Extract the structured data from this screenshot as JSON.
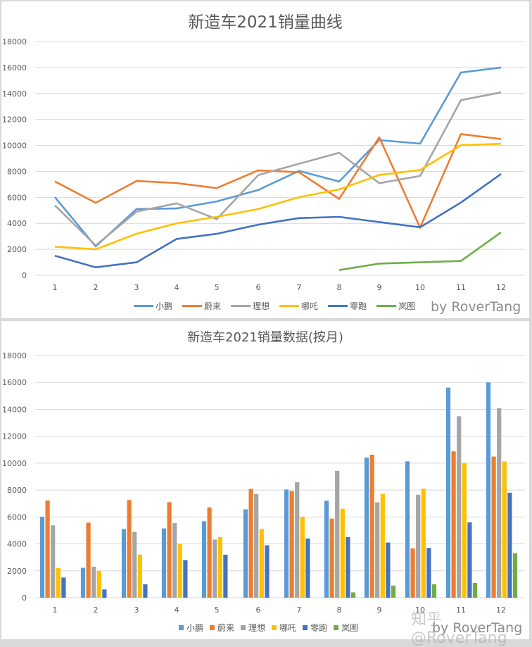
{
  "chart_data": [
    {
      "type": "line",
      "title": "新造车2021销量曲线",
      "xlabel": "",
      "ylabel": "",
      "categories": [
        "1",
        "2",
        "3",
        "4",
        "5",
        "6",
        "7",
        "8",
        "9",
        "10",
        "11",
        "12"
      ],
      "yticks": [
        "0",
        "2000",
        "4000",
        "6000",
        "8000",
        "10000",
        "12000",
        "14000",
        "16000",
        "18000"
      ],
      "ylim": [
        0,
        18000
      ],
      "grid": true,
      "legend_position": "bottom",
      "series": [
        {
          "name": "小鹏",
          "color": "#5b9bd5",
          "values": [
            6015,
            2223,
            5100,
            5147,
            5686,
            6565,
            8040,
            7214,
            10412,
            10138,
            15613,
            16000
          ]
        },
        {
          "name": "蔚来",
          "color": "#ed7d31",
          "values": [
            7225,
            5578,
            7257,
            7102,
            6711,
            8083,
            7931,
            5880,
            10628,
            3667,
            10878,
            10489
          ]
        },
        {
          "name": "理想",
          "color": "#a5a5a5",
          "values": [
            5379,
            2300,
            4900,
            5539,
            4323,
            7713,
            8589,
            9433,
            7094,
            7649,
            13485,
            14087
          ]
        },
        {
          "name": "哪吒",
          "color": "#ffc000",
          "values": [
            2200,
            2000,
            3200,
            4000,
            4500,
            5100,
            6011,
            6613,
            7722,
            8107,
            10013,
            10127
          ]
        },
        {
          "name": "零跑",
          "color": "#4472c4",
          "values": [
            1500,
            610,
            1000,
            2800,
            3195,
            3900,
            4400,
            4500,
            4100,
            3700,
            5600,
            7800
          ]
        },
        {
          "name": "岚图",
          "color": "#70ad47",
          "values": [
            null,
            null,
            null,
            null,
            null,
            null,
            null,
            400,
            900,
            1000,
            1100,
            3300
          ]
        }
      ],
      "annotation": "by RoverTang"
    },
    {
      "type": "bar",
      "title": "新造车2021销量数据(按月)",
      "xlabel": "",
      "ylabel": "",
      "categories": [
        "1",
        "2",
        "3",
        "4",
        "5",
        "6",
        "7",
        "8",
        "9",
        "10",
        "11",
        "12"
      ],
      "yticks": [
        "0",
        "2000",
        "4000",
        "6000",
        "8000",
        "10000",
        "12000",
        "14000",
        "16000",
        "18000"
      ],
      "ylim": [
        0,
        18000
      ],
      "grid": true,
      "legend_position": "bottom",
      "series": [
        {
          "name": "小鹏",
          "color": "#5b9bd5",
          "values": [
            6015,
            2223,
            5100,
            5147,
            5686,
            6565,
            8040,
            7214,
            10412,
            10138,
            15613,
            16000
          ]
        },
        {
          "name": "蔚来",
          "color": "#ed7d31",
          "values": [
            7225,
            5578,
            7257,
            7102,
            6711,
            8083,
            7931,
            5880,
            10628,
            3667,
            10878,
            10489
          ]
        },
        {
          "name": "理想",
          "color": "#a5a5a5",
          "values": [
            5379,
            2300,
            4900,
            5539,
            4323,
            7713,
            8589,
            9433,
            7094,
            7649,
            13485,
            14087
          ]
        },
        {
          "name": "哪吒",
          "color": "#ffc000",
          "values": [
            2200,
            2000,
            3200,
            4000,
            4500,
            5100,
            6011,
            6613,
            7722,
            8107,
            10013,
            10127
          ]
        },
        {
          "name": "零跑",
          "color": "#4472c4",
          "values": [
            1500,
            610,
            1000,
            2800,
            3195,
            3900,
            4400,
            4500,
            4100,
            3700,
            5600,
            7800
          ]
        },
        {
          "name": "岚图",
          "color": "#70ad47",
          "values": [
            0,
            0,
            0,
            0,
            0,
            0,
            0,
            400,
            900,
            1000,
            1100,
            3300
          ]
        }
      ],
      "annotation": "by RoverTang"
    }
  ],
  "line_chart": {
    "title": "新造车2021销量曲线",
    "credit": "by RoverTang",
    "legend": [
      "小鹏",
      "蔚来",
      "理想",
      "哪吒",
      "零跑",
      "岚图"
    ]
  },
  "bar_chart": {
    "title": "新造车2021销量数据(按月)",
    "credit": "by RoverTang",
    "watermark": "知乎 @RoverTang",
    "legend": [
      "小鹏",
      "蔚来",
      "理想",
      "哪吒",
      "零跑",
      "岚图"
    ]
  }
}
